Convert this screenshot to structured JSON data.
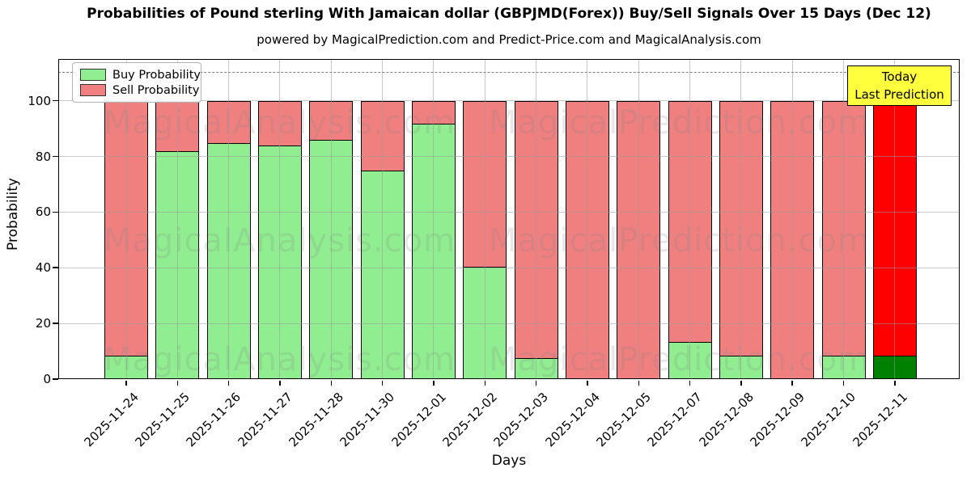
{
  "chart_data": {
    "type": "bar",
    "stacked": true,
    "title": "Probabilities of Pound sterling With Jamaican dollar (GBPJMD(Forex)) Buy/Sell Signals Over 15 Days (Dec 12)",
    "subtitle": "powered by MagicalPrediction.com and Predict-Price.com and MagicalAnalysis.com",
    "xlabel": "Days",
    "ylabel": "Probability",
    "categories": [
      "2025-11-24",
      "2025-11-25",
      "2025-11-26",
      "2025-11-27",
      "2025-11-28",
      "2025-11-30",
      "2025-12-01",
      "2025-12-02",
      "2025-12-03",
      "2025-12-04",
      "2025-12-05",
      "2025-12-07",
      "2025-12-08",
      "2025-12-09",
      "2025-12-10",
      "2025-12-11"
    ],
    "series": [
      {
        "name": "Buy Probability",
        "color": "#90EE90",
        "values": [
          8,
          82,
          85,
          84,
          86,
          75,
          92,
          40,
          7,
          0,
          0,
          13,
          8,
          0,
          8,
          8
        ]
      },
      {
        "name": "Sell Probability",
        "color": "#F08080",
        "values": [
          92,
          18,
          15,
          16,
          14,
          25,
          8,
          60,
          93,
          100,
          100,
          87,
          92,
          100,
          92,
          92
        ]
      }
    ],
    "today_bar": {
      "index": 15,
      "buy_color": "#008000",
      "sell_color": "#FF0000"
    },
    "ylim": [
      0,
      115
    ],
    "yticks": [
      0,
      20,
      40,
      60,
      80,
      100
    ],
    "reference_line_y": 110,
    "grid": true,
    "legend_position": "upper left",
    "bar_edge_color": "#000000"
  },
  "annotation": {
    "line1": "Today",
    "line2": "Last Prediction",
    "bg_color": "#FFFF3D"
  },
  "watermarks": {
    "left": "MagicalAnalysis.com",
    "right": "MagicalPrediction.com"
  }
}
